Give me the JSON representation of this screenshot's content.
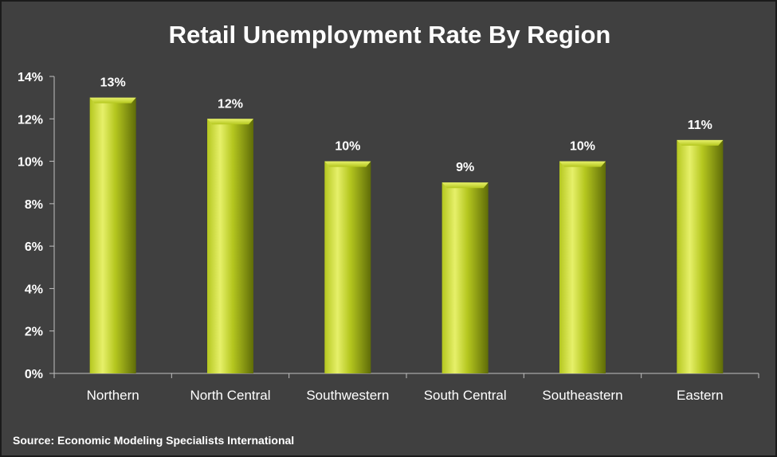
{
  "chart_data": {
    "type": "bar",
    "title": "Retail Unemployment Rate By Region",
    "categories": [
      "Northern",
      "North Central",
      "Southwestern",
      "South Central",
      "Southeastern",
      "Eastern"
    ],
    "values": [
      13,
      12,
      10,
      9,
      10,
      11
    ],
    "data_labels": [
      "13%",
      "12%",
      "10%",
      "9%",
      "10%",
      "11%"
    ],
    "y_ticks": [
      "0%",
      "2%",
      "4%",
      "6%",
      "8%",
      "10%",
      "12%",
      "14%"
    ],
    "ylim": [
      0,
      14
    ],
    "y_tick_step": 2,
    "xlabel": "",
    "ylabel": "",
    "grid": false,
    "legend": "none",
    "colors": {
      "background": "#404040",
      "bar": "#b5c71f",
      "bar_highlight": "#e6f06a",
      "bar_shadow": "#5f6c08",
      "axis": "#bfbfbf",
      "text": "#ffffff"
    }
  },
  "source_note": "Source: Economic Modeling Specialists International"
}
